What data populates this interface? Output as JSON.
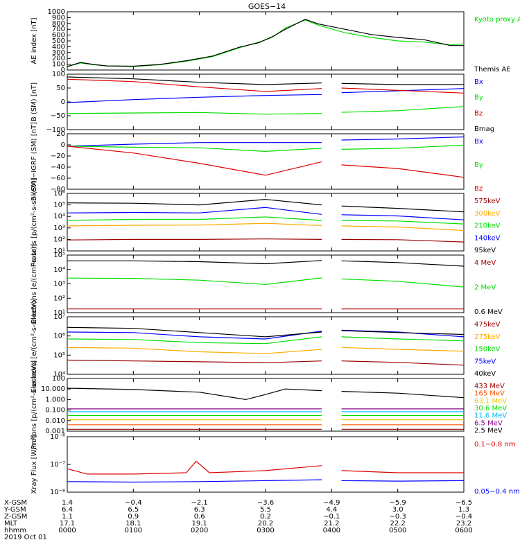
{
  "title": "GOES−14",
  "x_tick_labels": {
    "x_gsm": [
      "1.4",
      "−0.4",
      "−2.1",
      "−3.6",
      "−4.9",
      "−5.9",
      "−6.5"
    ],
    "y_gsm": [
      "6.4",
      "6.5",
      "6.3",
      "5.5",
      "4.4",
      "3.0",
      "1.3"
    ],
    "z_gsm": [
      "1.1",
      "0.9",
      "0.6",
      "0.2",
      "−0.1",
      "−0.3",
      "−0.4"
    ],
    "mlt": [
      "17.1",
      "18.1",
      "19.1",
      "20.2",
      "21.2",
      "22.2",
      "23.2"
    ],
    "hhmm": [
      "0000",
      "0100",
      "0200",
      "0300",
      "0400",
      "0500",
      "0600"
    ]
  },
  "row_labels": [
    "X-GSM",
    "Y-GSM",
    "Z-GSM",
    "MLT",
    "hhmm",
    "2019 Oct 01"
  ],
  "colors": {
    "black": "#000000",
    "blue": "#0000ff",
    "green": "#00dd00",
    "red": "#dd0000",
    "orange": "#ffaa00",
    "maroon": "#990000",
    "purple": "#880088",
    "cyan": "#00bbff",
    "yellow": "#eecc00",
    "orangered": "#ff5500",
    "darkred": "#aa0000"
  },
  "chart_data": [
    {
      "type": "line",
      "ylabel": "AE index [nT]",
      "ylim": [
        0,
        1000
      ],
      "yticks": [
        "0",
        "100",
        "200",
        "300",
        "400",
        "500",
        "600",
        "700",
        "800",
        "900",
        "1000"
      ],
      "series": [
        {
          "name": "Kyoto proxy AE",
          "color": "#00dd00",
          "x": [
            0,
            0.2,
            0.4,
            0.6,
            1.0,
            1.4,
            1.8,
            2.2,
            2.6,
            2.9,
            3.1,
            3.3,
            3.6,
            3.8,
            4.2,
            4.6,
            5.0,
            5.4,
            5.8,
            6.0
          ],
          "y": [
            60,
            120,
            90,
            70,
            60,
            90,
            150,
            230,
            380,
            480,
            560,
            720,
            860,
            770,
            640,
            560,
            500,
            480,
            430,
            450
          ]
        },
        {
          "name": "Themis AE",
          "color": "#000000",
          "x": [
            0,
            0.2,
            0.4,
            0.6,
            1.0,
            1.4,
            1.8,
            2.2,
            2.6,
            2.9,
            3.1,
            3.3,
            3.6,
            3.8,
            4.2,
            4.6,
            5.0,
            5.4,
            5.8,
            6.0
          ],
          "y": [
            60,
            130,
            95,
            70,
            65,
            95,
            160,
            240,
            390,
            470,
            570,
            700,
            870,
            790,
            700,
            610,
            560,
            520,
            420,
            420
          ]
        }
      ]
    },
    {
      "type": "line",
      "ylabel": "B (SM) [nT]",
      "ylim": [
        -120,
        120
      ],
      "yticks": [
        "−100",
        "−50",
        "0",
        "50",
        "100"
      ],
      "gap": [
        3.85,
        4.15
      ],
      "series": [
        {
          "name": "Bx",
          "color": "#0000ff",
          "x": [
            0,
            1,
            2,
            3,
            3.85,
            4.15,
            5,
            6
          ],
          "y": [
            -3,
            10,
            20,
            28,
            32,
            40,
            48,
            58
          ]
        },
        {
          "name": "By",
          "color": "#00dd00",
          "x": [
            0,
            1,
            2,
            3,
            3.85,
            4.15,
            5,
            6
          ],
          "y": [
            -50,
            -48,
            -46,
            -53,
            -50,
            -45,
            -38,
            -20
          ]
        },
        {
          "name": "Bz",
          "color": "#dd0000",
          "x": [
            0,
            1,
            2,
            3,
            3.85,
            4.15,
            5,
            6
          ],
          "y": [
            98,
            88,
            65,
            45,
            58,
            60,
            50,
            38
          ]
        },
        {
          "name": "Bmag",
          "color": "#000000",
          "x": [
            0,
            1,
            2,
            3,
            3.85,
            4.15,
            5,
            6
          ],
          "y": [
            108,
            100,
            85,
            75,
            82,
            80,
            75,
            75
          ]
        }
      ]
    },
    {
      "type": "line",
      "ylabel": "B (SM)−IGRF (SM) [nT]",
      "ylim": [
        -85,
        22
      ],
      "yticks": [
        "−80",
        "−60",
        "−40",
        "−20",
        "0",
        "20"
      ],
      "gap": [
        3.85,
        4.15
      ],
      "series": [
        {
          "name": "Bx",
          "color": "#0000ff",
          "x": [
            0,
            1,
            2,
            3,
            3.85,
            4.15,
            5,
            6
          ],
          "y": [
            -2,
            2,
            5,
            5,
            5,
            10,
            12,
            16
          ]
        },
        {
          "name": "By",
          "color": "#00dd00",
          "x": [
            0,
            1,
            2,
            3,
            3.85,
            4.15,
            5,
            6
          ],
          "y": [
            -2,
            -4,
            -5,
            -12,
            -6,
            -8,
            -6,
            0
          ]
        },
        {
          "name": "Bz",
          "color": "#dd0000",
          "x": [
            0,
            1,
            2,
            3,
            3.85,
            4.15,
            5,
            6
          ],
          "y": [
            -2,
            -15,
            -35,
            -58,
            -32,
            -38,
            -45,
            -62
          ]
        }
      ]
    },
    {
      "type": "line",
      "ylabel": "Protons [p/(cm²-s-sr-keV)]",
      "yscale": "log",
      "ylim": [
        10,
        1000000
      ],
      "yticks": [
        "10¹",
        "10²",
        "10³",
        "10⁴",
        "10⁵",
        "10⁶"
      ],
      "gap": [
        3.85,
        4.15
      ],
      "series": [
        {
          "name": "575keV",
          "color": "#990000",
          "x": [
            0,
            1,
            2,
            3,
            3.85,
            4.15,
            5,
            6
          ],
          "y": [
            90,
            100,
            100,
            110,
            100,
            100,
            95,
            60
          ]
        },
        {
          "name": "300keV",
          "color": "#ffaa00",
          "x": [
            0,
            1,
            2,
            3,
            3.85,
            4.15,
            5,
            6
          ],
          "y": [
            1500,
            1700,
            1800,
            2500,
            1600,
            1500,
            1200,
            600
          ]
        },
        {
          "name": "210keV",
          "color": "#00dd00",
          "x": [
            0,
            1,
            2,
            3,
            3.85,
            4.15,
            5,
            6
          ],
          "y": [
            4500,
            5500,
            5500,
            9000,
            4500,
            4500,
            4000,
            2200
          ]
        },
        {
          "name": "140keV",
          "color": "#0000ff",
          "x": [
            0,
            1,
            2,
            3,
            3.85,
            4.15,
            5,
            6
          ],
          "y": [
            20000,
            22000,
            20000,
            60000,
            15000,
            14000,
            11000,
            5000
          ]
        },
        {
          "name": "95keV",
          "color": "#000000",
          "x": [
            0,
            1,
            2,
            3,
            3.85,
            4.15,
            5,
            6
          ],
          "y": [
            150000,
            140000,
            100000,
            300000,
            100000,
            80000,
            50000,
            25000
          ]
        }
      ]
    },
    {
      "type": "line",
      "ylabel": "Electrons [e/(cm²-s-sr)]",
      "yscale": "log",
      "ylim": [
        10,
        100000
      ],
      "yticks": [
        "10¹",
        "10²",
        "10³",
        "10⁴",
        "10⁵"
      ],
      "gap": [
        3.85,
        4.15
      ],
      "series": [
        {
          "name": "4 MeV",
          "color": "#aa0000",
          "x": [
            0,
            1,
            2,
            3,
            3.85,
            4.15,
            5,
            6
          ],
          "y": [
            18,
            18,
            18,
            18,
            18,
            18,
            18,
            18
          ]
        },
        {
          "name": "2 MeV",
          "color": "#00dd00",
          "x": [
            0,
            1,
            2,
            3,
            3.85,
            4.15,
            5,
            6
          ],
          "y": [
            2500,
            2400,
            1800,
            900,
            2600,
            2200,
            1500,
            600
          ]
        },
        {
          "name": "0.6 MeV",
          "color": "#000000",
          "x": [
            0,
            1,
            2,
            3,
            3.85,
            4.15,
            5,
            6
          ],
          "y": [
            40000,
            40000,
            35000,
            25000,
            42000,
            40000,
            30000,
            17000
          ]
        }
      ]
    },
    {
      "type": "line",
      "ylabel": "Electrons [e/(cm²-s-sr-keV)]",
      "yscale": "log",
      "ylim": [
        10000,
        10000000
      ],
      "yticks": [
        "10⁴",
        "10⁵",
        "10⁶",
        "10⁷"
      ],
      "gap": [
        3.85,
        4.15
      ],
      "series": [
        {
          "name": "475keV",
          "color": "#990000",
          "x": [
            0,
            1,
            2,
            3,
            3.85,
            4.15,
            5,
            6
          ],
          "y": [
            55000,
            50000,
            45000,
            40000,
            50000,
            50000,
            42000,
            30000
          ]
        },
        {
          "name": "275keV",
          "color": "#ffaa00",
          "x": [
            0,
            1,
            2,
            3,
            3.85,
            4.15,
            5,
            6
          ],
          "y": [
            250000,
            230000,
            150000,
            120000,
            200000,
            250000,
            200000,
            160000
          ]
        },
        {
          "name": "150keV",
          "color": "#00dd00",
          "x": [
            0,
            1,
            2,
            3,
            3.85,
            4.15,
            5,
            6
          ],
          "y": [
            700000,
            650000,
            450000,
            400000,
            900000,
            900000,
            700000,
            550000
          ]
        },
        {
          "name": "75keV",
          "color": "#0000ff",
          "x": [
            0,
            1,
            2,
            3,
            3.85,
            4.15,
            5,
            6
          ],
          "y": [
            1600000,
            1500000,
            900000,
            700000,
            1800000,
            2000000,
            1600000,
            900000
          ]
        },
        {
          "name": "40keV",
          "color": "#000000",
          "x": [
            0,
            1,
            2,
            3,
            3.85,
            4.15,
            5,
            6
          ],
          "y": [
            2800000,
            2500000,
            1500000,
            900000,
            1600000,
            1900000,
            1500000,
            1200000
          ]
        }
      ]
    },
    {
      "type": "line",
      "ylabel": "Protons [p/(cm²-s-sr-keV)]",
      "yscale": "log",
      "ylim": [
        0.001,
        100
      ],
      "yticks": [
        "0.001",
        "0.010",
        "0.100",
        "1.000",
        "10.000",
        "100"
      ],
      "gap": [
        3.85,
        4.15
      ],
      "series": [
        {
          "name": "433 MeV",
          "color": "#990000",
          "x": [
            0,
            3.85,
            4.15,
            6
          ],
          "y": [
            0.0015,
            0.0015,
            0.0015,
            0.0015
          ]
        },
        {
          "name": "165 MeV",
          "color": "#ff5500",
          "x": [
            0,
            3.85,
            4.15,
            6
          ],
          "y": [
            0.004,
            0.004,
            0.004,
            0.004
          ]
        },
        {
          "name": "63.1 MeV",
          "color": "#eecc00",
          "x": [
            0,
            3.85,
            4.15,
            6
          ],
          "y": [
            0.012,
            0.012,
            0.012,
            0.012
          ]
        },
        {
          "name": "30.6 MeV",
          "color": "#00dd00",
          "x": [
            0,
            3.85,
            4.15,
            6
          ],
          "y": [
            0.03,
            0.03,
            0.03,
            0.03
          ]
        },
        {
          "name": "11.6 MeV",
          "color": "#00bbff",
          "x": [
            0,
            3.85,
            4.15,
            6
          ],
          "y": [
            0.07,
            0.07,
            0.07,
            0.07
          ]
        },
        {
          "name": "6.5 MeV",
          "color": "#880088",
          "x": [
            0,
            3.85,
            4.15,
            6
          ],
          "y": [
            0.13,
            0.13,
            0.13,
            0.13
          ]
        },
        {
          "name": "2.5 MeV",
          "color": "#000000",
          "x": [
            0,
            1,
            2,
            2.7,
            3,
            3.3,
            3.85,
            4.15,
            5,
            6
          ],
          "y": [
            12,
            9,
            5,
            1,
            3,
            10,
            7,
            6,
            4,
            1.5
          ]
        }
      ]
    },
    {
      "type": "line",
      "ylabel": "Xray Flux [W/m²]",
      "yscale": "log",
      "ylim": [
        1e-08,
        1e-06
      ],
      "yticks": [
        "10⁻⁸",
        "10⁻⁷",
        "10⁻⁶"
      ],
      "gap": [
        3.85,
        4.15
      ],
      "series": [
        {
          "name": "0.1−0.8 nm",
          "color": "#dd0000",
          "x": [
            0,
            0.3,
            1,
            1.8,
            1.95,
            2.15,
            3,
            3.85,
            4.15,
            5,
            6
          ],
          "y": [
            7e-08,
            4.5e-08,
            4.5e-08,
            5e-08,
            1.3e-07,
            5e-08,
            6e-08,
            9e-08,
            6e-08,
            5e-08,
            5e-08
          ]
        },
        {
          "name": "0.05−0.4 nm",
          "color": "#0000ff",
          "x": [
            0,
            1,
            2,
            3,
            3.85,
            4.15,
            5,
            6
          ],
          "y": [
            2.4e-08,
            2.3e-08,
            2.4e-08,
            2.6e-08,
            2.8e-08,
            2.6e-08,
            2.5e-08,
            2.6e-08
          ]
        }
      ]
    }
  ]
}
